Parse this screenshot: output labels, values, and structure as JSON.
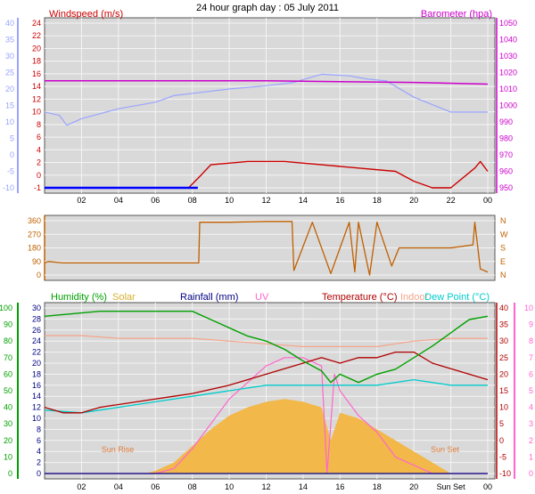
{
  "title": "24 hour graph day : 05 July 2011",
  "colors": {
    "windspeed": "#cc0000",
    "wind_avg": "#0000ff",
    "barometer": "#cc00cc",
    "temp_left": "#9aa4ff",
    "direction": "#c06000",
    "humidity": "#00a000",
    "solar": "#f2b84a",
    "rainfall": "#000080",
    "uv": "#ff66cc",
    "temperature": "#b00000",
    "indoor": "#f5a58a",
    "dewpoint": "#00cccc",
    "plot_bg": "#d9d9d9",
    "border": "#555555",
    "sun_label": "#e08040"
  },
  "x_ticks": [
    "02",
    "04",
    "06",
    "08",
    "10",
    "12",
    "14",
    "16",
    "18",
    "20",
    "22",
    "00"
  ],
  "x_ticks_bottom": [
    "02",
    "04",
    "06",
    "08",
    "10",
    "12",
    "14",
    "16",
    "18",
    "20",
    "Sun Set",
    "00"
  ],
  "chart_data": [
    {
      "type": "line",
      "title": "",
      "series": [
        {
          "name": "Windspeed (m/s)",
          "x": [
            0,
            7.8,
            8.5,
            9,
            11,
            13,
            15,
            17,
            19,
            20,
            21,
            22,
            23.3,
            23.6,
            24
          ],
          "y": [
            -1,
            -1,
            1,
            2.5,
            3,
            3,
            2.5,
            2,
            1.5,
            0,
            -1,
            -1,
            2,
            3,
            1.5
          ]
        },
        {
          "name": "Barometer (hpa)",
          "x": [
            0,
            4,
            8,
            12,
            16,
            20,
            24
          ],
          "y": [
            1015,
            1015,
            1015,
            1015,
            1014.5,
            1014,
            1013
          ]
        },
        {
          "x": [
            0,
            0.8,
            1.2,
            2,
            4,
            6,
            7,
            8.5,
            10,
            12,
            13.5,
            15,
            16.5,
            17.5,
            18.5,
            20,
            22,
            24
          ],
          "y": [
            13,
            12,
            9,
            11,
            14,
            16,
            18,
            19,
            20,
            21,
            22,
            24.5,
            24,
            23,
            22.5,
            17.5,
            13,
            13
          ]
        }
      ],
      "y_left": {
        "ticks": [
          24,
          22,
          20,
          18,
          16,
          14,
          12,
          10,
          8,
          6,
          4,
          2,
          0,
          -1
        ]
      },
      "y_left_outer": {
        "ticks": [
          40,
          35,
          30,
          25,
          20,
          15,
          10,
          5,
          0,
          -5,
          -10
        ]
      },
      "y_right": {
        "ticks": [
          1050,
          1040,
          1030,
          1020,
          1010,
          1000,
          990,
          980,
          970,
          960,
          950
        ]
      }
    },
    {
      "type": "line",
      "title": "",
      "series": [
        {
          "x": [
            0,
            0.2,
            1,
            4,
            8.35,
            8.4,
            10,
            12,
            13.4,
            13.5,
            14.5,
            15.5,
            16.5,
            16.8,
            17,
            17.6,
            18,
            18.8,
            19.2,
            22,
            23.2,
            23.3,
            23.6,
            24
          ],
          "y": [
            80,
            90,
            80,
            80,
            80,
            350,
            350,
            355,
            355,
            30,
            350,
            10,
            350,
            20,
            350,
            0,
            350,
            60,
            180,
            180,
            200,
            350,
            40,
            20
          ]
        }
      ],
      "y_left": {
        "ticks": [
          360,
          270,
          180,
          90,
          0
        ]
      },
      "y_right": {
        "ticks": [
          "N",
          "W",
          "S",
          "E",
          "N"
        ]
      }
    },
    {
      "type": "area",
      "title": "",
      "series": [
        {
          "name": "Humidity (%)",
          "x": [
            0,
            1,
            3,
            5,
            8,
            9,
            10,
            11,
            12,
            13,
            14,
            15,
            15.5,
            16,
            17,
            18,
            19,
            20,
            21,
            22,
            23,
            24
          ],
          "y": [
            95,
            96,
            98,
            98,
            98,
            93,
            88,
            83,
            80,
            75,
            68,
            62,
            55,
            60,
            55,
            60,
            63,
            70,
            77,
            85,
            93,
            95
          ]
        },
        {
          "name": "Solar",
          "x": [
            0,
            5.5,
            6,
            7,
            8,
            9,
            10,
            11,
            12,
            13,
            14,
            15,
            15.5,
            16,
            17,
            18,
            19,
            20,
            21,
            22,
            24
          ],
          "y": [
            0,
            0,
            0.5,
            2,
            5,
            8,
            10.5,
            12,
            13,
            13.5,
            13,
            12,
            6,
            11,
            10,
            8,
            6,
            4,
            2,
            0,
            0
          ]
        },
        {
          "name": "Rainfall (mm)",
          "x": [
            0,
            24
          ],
          "y": [
            0,
            0
          ]
        },
        {
          "name": "UV",
          "x": [
            0,
            6,
            7,
            8,
            9,
            10,
            11,
            12,
            13,
            14,
            15,
            15.3,
            15.7,
            16,
            17,
            18,
            19,
            20,
            21,
            24
          ],
          "y": [
            0,
            0,
            0.3,
            1.5,
            3,
            4.5,
            5.5,
            6.5,
            7,
            7,
            6.5,
            0,
            6,
            5,
            3.5,
            2.5,
            1,
            0.5,
            0,
            0
          ]
        },
        {
          "name": "Temperature (°C)",
          "x": [
            0,
            1,
            2,
            3,
            5,
            7,
            8,
            10,
            12,
            14,
            15,
            16,
            17,
            18,
            19,
            20,
            21,
            22,
            24
          ],
          "y": [
            12,
            11,
            11,
            12,
            13,
            14,
            14.5,
            16,
            18,
            20,
            21,
            20,
            21,
            21,
            22,
            22,
            20,
            19,
            17
          ]
        },
        {
          "name": "Indoor",
          "x": [
            0,
            2,
            4,
            6,
            8,
            10,
            12,
            14,
            16,
            18,
            20,
            22,
            24
          ],
          "y": [
            25,
            25,
            24.5,
            24.5,
            24.5,
            24,
            23.5,
            23,
            23,
            23,
            24,
            24.5,
            24.5
          ]
        },
        {
          "name": "Dew Point (°C)",
          "x": [
            0,
            2,
            4,
            6,
            8,
            10,
            12,
            14,
            16,
            18,
            20,
            22,
            24
          ],
          "y": [
            11.5,
            11,
            12,
            13,
            14,
            15,
            16,
            16,
            16,
            16,
            17,
            16,
            16
          ]
        }
      ],
      "y_left": {
        "ticks": [
          30,
          28,
          26,
          24,
          22,
          20,
          18,
          16,
          14,
          12,
          10,
          8,
          6,
          4,
          2,
          0
        ]
      },
      "y_left_outer": {
        "ticks": [
          100,
          90,
          80,
          70,
          60,
          50,
          40,
          30,
          20,
          10,
          0
        ]
      },
      "y_right": {
        "ticks": [
          40,
          35,
          30,
          25,
          20,
          15,
          10,
          5,
          0,
          -5,
          -10
        ]
      },
      "y_right_outer": {
        "ticks": [
          10,
          9,
          8,
          7,
          6,
          5,
          4,
          3,
          2,
          1,
          0
        ]
      },
      "annotations": [
        "Sun Rise",
        "Sun Set"
      ]
    }
  ]
}
